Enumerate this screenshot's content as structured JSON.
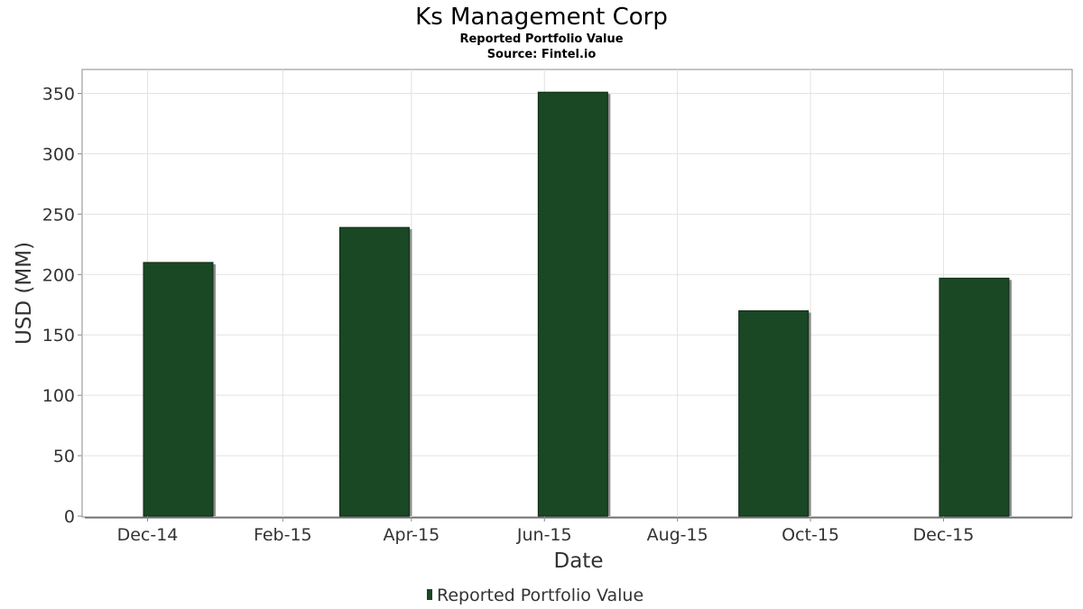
{
  "chart_data": {
    "type": "bar",
    "title": "Ks Management Corp",
    "subtitle": "Reported Portfolio Value",
    "source": "Source: Fintel.io",
    "xlabel": "Date",
    "ylabel": "USD (MM)",
    "ylim": [
      0,
      370
    ],
    "yticks": [
      0,
      50,
      100,
      150,
      200,
      250,
      300,
      350
    ],
    "xlim": [
      "2014-11-01",
      "2016-01-29"
    ],
    "xticks": [
      {
        "date": "2014-12-01",
        "label": "Dec-14"
      },
      {
        "date": "2015-02-01",
        "label": "Feb-15"
      },
      {
        "date": "2015-04-01",
        "label": "Apr-15"
      },
      {
        "date": "2015-06-01",
        "label": "Jun-15"
      },
      {
        "date": "2015-08-01",
        "label": "Aug-15"
      },
      {
        "date": "2015-10-01",
        "label": "Oct-15"
      },
      {
        "date": "2015-12-01",
        "label": "Dec-15"
      }
    ],
    "grid": true,
    "legend_position": "bottom",
    "series": [
      {
        "name": "Reported Portfolio Value",
        "color": "#1a4724",
        "points": [
          {
            "date": "2014-12-31",
            "value": 210
          },
          {
            "date": "2015-03-31",
            "value": 239
          },
          {
            "date": "2015-06-30",
            "value": 351
          },
          {
            "date": "2015-09-30",
            "value": 170
          },
          {
            "date": "2015-12-31",
            "value": 197
          }
        ]
      }
    ]
  }
}
